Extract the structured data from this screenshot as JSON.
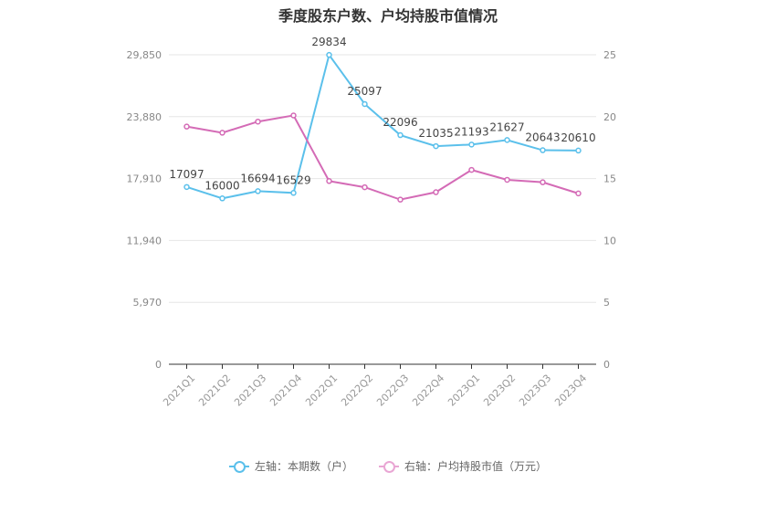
{
  "chart_data": {
    "type": "line",
    "title": "季度股东户数、户均持股市值情况",
    "categories": [
      "2021Q1",
      "2021Q2",
      "2021Q3",
      "2021Q4",
      "2022Q1",
      "2022Q2",
      "2022Q3",
      "2022Q4",
      "2023Q1",
      "2023Q2",
      "2023Q3",
      "2023Q4"
    ],
    "left_axis": {
      "ticks": [
        "0",
        "5,970",
        "11,940",
        "17,910",
        "23,880",
        "29,850"
      ],
      "ylim": [
        0,
        29850
      ]
    },
    "right_axis": {
      "ticks": [
        "0",
        "5",
        "10",
        "15",
        "20",
        "25"
      ],
      "ylim": [
        0,
        25
      ]
    },
    "series": [
      {
        "name": "左轴：本期数（户）",
        "axis": "left",
        "color": "#5bc0eb",
        "values": [
          17097,
          16000,
          16694,
          16529,
          29834,
          25097,
          22096,
          21035,
          21193,
          21627,
          20643,
          20610
        ],
        "labels": [
          "17097",
          "16000",
          "16694",
          "16529",
          "29834",
          "25097",
          "22096",
          "21035",
          "21193",
          "21627",
          "20643",
          "20610"
        ]
      },
      {
        "name": "右轴：户均持股市值（万元）",
        "axis": "right",
        "color": "#d46bb6",
        "values": [
          19.2,
          18.7,
          19.6,
          20.1,
          14.8,
          14.3,
          13.3,
          13.9,
          15.7,
          14.9,
          14.7,
          13.8
        ]
      }
    ],
    "grid": true,
    "legend_position": "bottom"
  }
}
